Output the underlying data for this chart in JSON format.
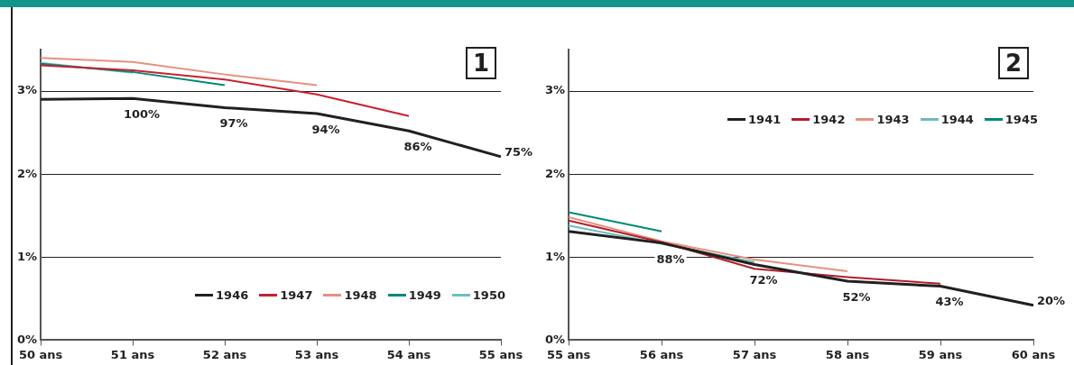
{
  "chart_data": [
    {
      "type": "line",
      "title": "1",
      "categories": [
        "50 ans",
        "51 ans",
        "52 ans",
        "53 ans",
        "54 ans",
        "55 ans"
      ],
      "series": [
        {
          "name": "1946",
          "color": "#231f20",
          "values": [
            2.9,
            2.91,
            2.8,
            2.73,
            2.52,
            2.21
          ]
        },
        {
          "name": "1947",
          "color": "#c8202f",
          "values": [
            3.31,
            3.25,
            3.14,
            2.96,
            2.7,
            null
          ]
        },
        {
          "name": "1948",
          "color": "#e8907e",
          "values": [
            3.4,
            3.35,
            3.2,
            3.07,
            null,
            null
          ]
        },
        {
          "name": "1949",
          "color": "#00877a",
          "values": [
            3.33,
            3.23,
            3.07,
            null,
            null,
            null
          ]
        },
        {
          "name": "1950",
          "color": "#6cc0be",
          "values": [
            3.34,
            3.22,
            null,
            null,
            null,
            null
          ]
        }
      ],
      "ylim": [
        0,
        3.5
      ],
      "yticks": [
        {
          "value": 0,
          "label": "0%"
        },
        {
          "value": 1,
          "label": "1%"
        },
        {
          "value": 2,
          "label": "2%"
        },
        {
          "value": 3,
          "label": "3%"
        }
      ],
      "grid": "y",
      "legend": "bottom right",
      "marker": "none",
      "line_style": "solid",
      "annotations": [
        {
          "text": "100%",
          "x": "51 ans",
          "y": 2.91
        },
        {
          "text": "97%",
          "x": "52 ans",
          "y": 2.8
        },
        {
          "text": "94%",
          "x": "53 ans",
          "y": 2.73
        },
        {
          "text": "86%",
          "x": "54 ans",
          "y": 2.52
        },
        {
          "text": "75%",
          "x": "55 ans",
          "y": 2.21
        }
      ]
    },
    {
      "type": "line",
      "title": "2",
      "categories": [
        "55 ans",
        "56 ans",
        "57 ans",
        "58 ans",
        "59 ans",
        "60 ans"
      ],
      "series": [
        {
          "name": "1941",
          "color": "#231f20",
          "values": [
            1.31,
            1.17,
            0.91,
            0.71,
            0.65,
            0.42
          ]
        },
        {
          "name": "1942",
          "color": "#b01e2d",
          "values": [
            1.44,
            1.18,
            0.86,
            0.76,
            0.68,
            null
          ]
        },
        {
          "name": "1943",
          "color": "#e8907e",
          "values": [
            1.48,
            1.19,
            0.97,
            0.83,
            null,
            null
          ]
        },
        {
          "name": "1944",
          "color": "#6cbcbc",
          "values": [
            1.38,
            1.16,
            0.94,
            null,
            null,
            null
          ]
        },
        {
          "name": "1945",
          "color": "#008a70",
          "values": [
            1.54,
            1.31,
            null,
            null,
            null,
            null
          ]
        }
      ],
      "ylim": [
        0,
        3.5
      ],
      "yticks": [
        {
          "value": 0,
          "label": "0%"
        },
        {
          "value": 1,
          "label": "1%"
        },
        {
          "value": 2,
          "label": "2%"
        },
        {
          "value": 3,
          "label": "3%"
        }
      ],
      "grid": "y",
      "legend": "top right",
      "marker": "none",
      "line_style": "solid",
      "annotations": [
        {
          "text": "88%",
          "x": "56 ans",
          "y": 1.17
        },
        {
          "text": "72%",
          "x": "57 ans",
          "y": 0.91
        },
        {
          "text": "52%",
          "x": "58 ans",
          "y": 0.71
        },
        {
          "text": "43%",
          "x": "59 ans",
          "y": 0.65
        },
        {
          "text": "20%",
          "x": "60 ans",
          "y": 0.42
        }
      ]
    }
  ]
}
